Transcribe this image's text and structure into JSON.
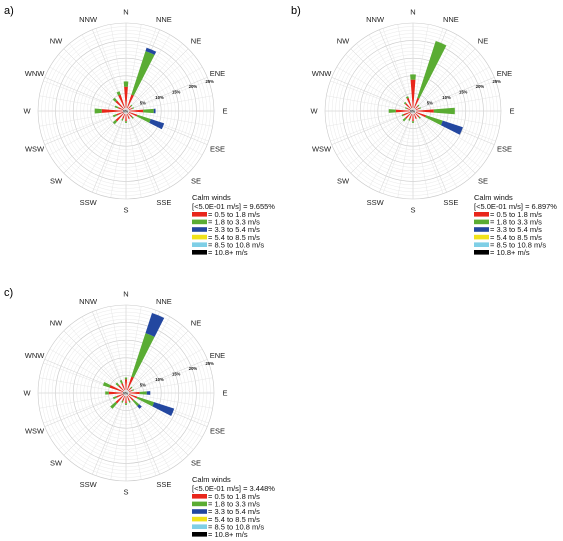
{
  "directions": [
    "N",
    "NNE",
    "NE",
    "ENE",
    "E",
    "ESE",
    "SE",
    "SSE",
    "S",
    "SSW",
    "SW",
    "WSW",
    "W",
    "WNW",
    "NW",
    "NNW"
  ],
  "rings": [
    {
      "pct": 5,
      "label": "5%"
    },
    {
      "pct": 10,
      "label": "10%"
    },
    {
      "pct": 15,
      "label": "15%"
    },
    {
      "pct": 20,
      "label": "20%"
    },
    {
      "pct": 25,
      "label": "25%"
    }
  ],
  "colors": {
    "0.5-1.8": "#e8261b",
    "1.8-3.3": "#5aac33",
    "3.3-5.4": "#2347a0",
    "5.4-8.5": "#f0e21b",
    "8.5-10.8": "#7fcfe6",
    "10.8+": "#000000"
  },
  "legend": {
    "title": "Calm winds",
    "entries": [
      {
        "key": "0.5-1.8",
        "label": "= 0.5 to 1.8 m/s"
      },
      {
        "key": "1.8-3.3",
        "label": "= 1.8 to 3.3 m/s"
      },
      {
        "key": "3.3-5.4",
        "label": "= 3.3 to 5.4 m/s"
      },
      {
        "key": "5.4-8.5",
        "label": "= 5.4 to 8.5 m/s"
      },
      {
        "key": "8.5-10.8",
        "label": "= 8.5 to 10.8 m/s"
      },
      {
        "key": "10.8+",
        "label": "= 10.8+ m/s"
      }
    ]
  },
  "chart_data": [
    {
      "type": "wind-rose",
      "panel_label": "a)",
      "calm_text": "[<5.0E-01 m/s] = 9.655%",
      "center_label": "0%",
      "rmax_pct": 25,
      "bins": [
        "0.5-1.8",
        "1.8-3.3",
        "3.3-5.4"
      ],
      "series": [
        {
          "direction": "N",
          "values": [
            6,
            1.5,
            0
          ]
        },
        {
          "direction": "NNE",
          "values": [
            4,
            13,
            1
          ]
        },
        {
          "direction": "NE",
          "values": [
            1,
            0.5,
            0
          ]
        },
        {
          "direction": "ENE",
          "values": [
            1,
            0.5,
            0
          ]
        },
        {
          "direction": "E",
          "values": [
            4,
            3,
            0.5
          ]
        },
        {
          "direction": "ESE",
          "values": [
            2.5,
            4,
            4
          ]
        },
        {
          "direction": "SE",
          "values": [
            1.5,
            0.5,
            0
          ]
        },
        {
          "direction": "SSE",
          "values": [
            1.5,
            0,
            0
          ]
        },
        {
          "direction": "S",
          "values": [
            2,
            0.5,
            0
          ]
        },
        {
          "direction": "SSW",
          "values": [
            1.5,
            0.5,
            0
          ]
        },
        {
          "direction": "SW",
          "values": [
            3,
            1,
            0
          ]
        },
        {
          "direction": "WSW",
          "values": [
            2,
            1,
            0
          ]
        },
        {
          "direction": "W",
          "values": [
            6,
            2,
            0
          ]
        },
        {
          "direction": "WNW",
          "values": [
            1.5,
            1,
            0
          ]
        },
        {
          "direction": "NW",
          "values": [
            3,
            1,
            0
          ]
        },
        {
          "direction": "NNW",
          "values": [
            4,
            1,
            0
          ]
        }
      ]
    },
    {
      "type": "wind-rose",
      "panel_label": "b)",
      "calm_text": "[<5.0E-01 m/s] = 6.897%",
      "center_label": "0%",
      "rmax_pct": 25,
      "bins": [
        "0.5-1.8",
        "1.8-3.3",
        "3.3-5.4"
      ],
      "series": [
        {
          "direction": "N",
          "values": [
            8,
            1.5,
            0
          ]
        },
        {
          "direction": "NNE",
          "values": [
            3,
            17,
            0
          ]
        },
        {
          "direction": "NE",
          "values": [
            1,
            0.5,
            0
          ]
        },
        {
          "direction": "ENE",
          "values": [
            1,
            0.5,
            0
          ]
        },
        {
          "direction": "E",
          "values": [
            5,
            6,
            0
          ]
        },
        {
          "direction": "ESE",
          "values": [
            3,
            5,
            6
          ]
        },
        {
          "direction": "SE",
          "values": [
            1.5,
            0.5,
            0
          ]
        },
        {
          "direction": "SSE",
          "values": [
            1.5,
            0,
            0
          ]
        },
        {
          "direction": "S",
          "values": [
            2,
            0.5,
            0
          ]
        },
        {
          "direction": "SSW",
          "values": [
            1.5,
            0.5,
            0
          ]
        },
        {
          "direction": "SW",
          "values": [
            2,
            1,
            0
          ]
        },
        {
          "direction": "WSW",
          "values": [
            2,
            0.5,
            0
          ]
        },
        {
          "direction": "W",
          "values": [
            4,
            2,
            0
          ]
        },
        {
          "direction": "WNW",
          "values": [
            1,
            0.5,
            0
          ]
        },
        {
          "direction": "NW",
          "values": [
            2,
            0.5,
            0
          ]
        },
        {
          "direction": "NNW",
          "values": [
            3,
            0.5,
            0
          ]
        }
      ]
    },
    {
      "type": "wind-rose",
      "panel_label": "c)",
      "calm_text": "[<5.0E-01 m/s] = 3.448%",
      "center_label": "0%",
      "rmax_pct": 25,
      "bins": [
        "0.5-1.8",
        "1.8-3.3",
        "3.3-5.4"
      ],
      "series": [
        {
          "direction": "N",
          "values": [
            3,
            0.5,
            0
          ]
        },
        {
          "direction": "NNE",
          "values": [
            4,
            13,
            6
          ]
        },
        {
          "direction": "NE",
          "values": [
            1,
            0.5,
            0
          ]
        },
        {
          "direction": "ENE",
          "values": [
            1,
            0.5,
            0
          ]
        },
        {
          "direction": "E",
          "values": [
            3,
            2,
            1
          ]
        },
        {
          "direction": "ESE",
          "values": [
            2.5,
            5,
            6
          ]
        },
        {
          "direction": "SE",
          "values": [
            2,
            2,
            1
          ]
        },
        {
          "direction": "SSE",
          "values": [
            1.5,
            0.5,
            0
          ]
        },
        {
          "direction": "S",
          "values": [
            2,
            0.5,
            0
          ]
        },
        {
          "direction": "SSW",
          "values": [
            1.5,
            0.5,
            0
          ]
        },
        {
          "direction": "SW",
          "values": [
            3,
            2,
            0
          ]
        },
        {
          "direction": "WSW",
          "values": [
            2,
            1,
            0
          ]
        },
        {
          "direction": "W",
          "values": [
            4,
            1,
            0
          ]
        },
        {
          "direction": "WNW",
          "values": [
            4,
            2,
            0
          ]
        },
        {
          "direction": "NW",
          "values": [
            2,
            1,
            0
          ]
        },
        {
          "direction": "NNW",
          "values": [
            2,
            1,
            0
          ]
        }
      ]
    }
  ]
}
